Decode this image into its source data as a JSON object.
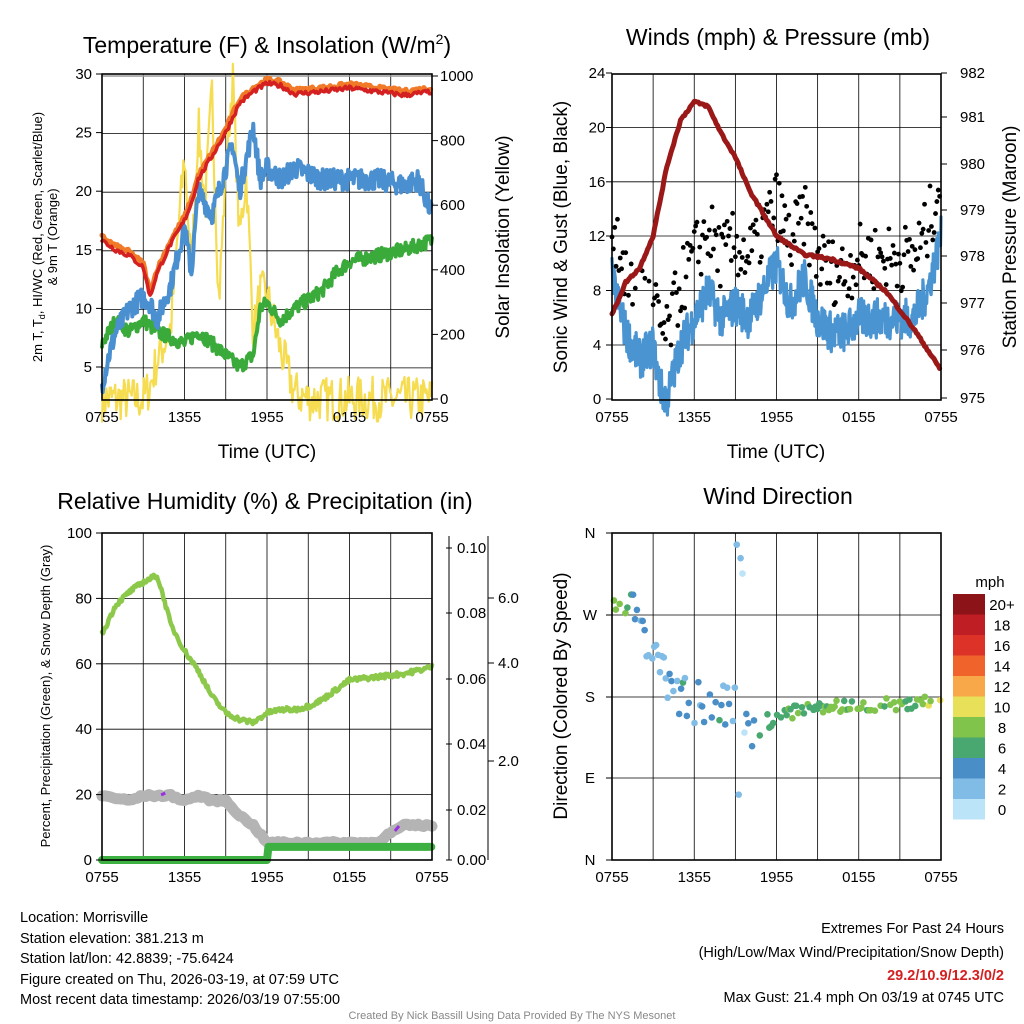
{
  "footer": {
    "location": "Location: Morrisville",
    "elevation": "Station elevation: 381.213 m",
    "latlon": "Station lat/lon: 42.8839; -75.6424",
    "created": "Figure created on Thu, 2026-03-19, at 07:59 UTC",
    "recent": "Most recent data timestamp: 2026/03/19 07:55:00",
    "extremes_title": "Extremes For Past 24 Hours",
    "extremes_legend": "(High/Low/Max Wind/Precipitation/Snow Depth)",
    "extremes_values": "29.2/10.9/12.3/0/2",
    "max_gust": "Max Gust: 21.4 mph On 03/19 at 0745 UTC",
    "credit": "Created By Nick Bassill Using Data Provided By The NYS Mesonet"
  },
  "colors": {
    "temp": "#d42020",
    "temp9m": "#f07a28",
    "dew": "#4a8fd0",
    "hiwc": "#3aaa3a",
    "solar": "#f5dc50",
    "wind": "#4a94d2",
    "gust": "#000000",
    "pressure": "#9a1818",
    "rh": "#8cc84a",
    "precip": "#3cb040",
    "snow": "#b4b4b4",
    "snowmark": "#9a30e0",
    "extreme": "#d42020"
  },
  "chart_data": [
    {
      "type": "line",
      "title": "Temperature (F) & Insolation (W/m",
      "title_sup": "2",
      "title_end": ")",
      "xlabel": "Time (UTC)",
      "ylabel_line1": "2m T, T",
      "ylabel_sub": "d",
      "ylabel_line1b": ", HI/WC (Red, Green, Scarlet/Blue)",
      "ylabel_line2": "& 9m T (Orange)",
      "y2label": "Solar Insolation (Yellow)",
      "xticks": [
        "0755",
        "1355",
        "1955",
        "0155",
        "0755"
      ],
      "yticks": [
        "30",
        "25",
        "20",
        "15",
        "10",
        "5"
      ],
      "y2ticks": [
        "1000",
        "800",
        "600",
        "400",
        "200",
        "0"
      ],
      "ylim": [
        2.2,
        30
      ],
      "y2lim": [
        0,
        1000
      ],
      "xlim_hours": [
        0,
        24
      ],
      "grid": true,
      "series": [
        {
          "name": "2m T",
          "color_key": "temp",
          "x": [
            0,
            1,
            2,
            3,
            3.5,
            4,
            5,
            6,
            6.5,
            7,
            8,
            9,
            10,
            11,
            12,
            13,
            14,
            16,
            18,
            20,
            22,
            24
          ],
          "y": [
            15.8,
            15,
            14.5,
            13.5,
            11,
            13,
            15.5,
            17.5,
            19,
            21,
            23,
            25,
            27.5,
            28.5,
            29.2,
            29,
            28.3,
            28.5,
            28.8,
            28.5,
            28.2,
            28.5
          ]
        },
        {
          "name": "Td",
          "color_key": "dew",
          "x": [
            0,
            0.5,
            1,
            2,
            3,
            3.5,
            4,
            5,
            6,
            6.5,
            7,
            8,
            9,
            9.5,
            10,
            11,
            11.5,
            12,
            13,
            14,
            16,
            18,
            20,
            22,
            23,
            24
          ],
          "y": [
            3.5,
            6,
            8,
            10,
            11,
            10.5,
            9,
            12,
            17,
            13,
            20,
            18,
            22,
            24,
            20,
            25.5,
            21,
            22,
            21,
            22,
            21,
            21,
            21,
            20.5,
            21,
            18
          ]
        },
        {
          "name": "HI/WC",
          "color_key": "hiwc",
          "x": [
            0,
            1,
            2,
            3,
            4,
            5,
            6,
            7,
            8,
            9,
            10,
            11,
            11.5,
            12,
            13,
            14,
            16,
            17,
            18,
            20,
            22,
            24
          ],
          "y": [
            7,
            9,
            8,
            9,
            8,
            7.5,
            7,
            8,
            7,
            6,
            5,
            6,
            10,
            10.5,
            9,
            10,
            11.5,
            13,
            14,
            14.5,
            15,
            15.8
          ]
        },
        {
          "name": "Solar",
          "color_key": "solar",
          "axis": "y2",
          "x": [
            0,
            3,
            3.5,
            4,
            5,
            5.5,
            6,
            6.5,
            7,
            7.5,
            8,
            8.5,
            9,
            9.5,
            10,
            10.5,
            11,
            11.5,
            12,
            13,
            14,
            15,
            24
          ],
          "y": [
            0,
            0,
            40,
            120,
            220,
            500,
            750,
            400,
            850,
            600,
            950,
            300,
            700,
            1000,
            500,
            700,
            200,
            330,
            320,
            150,
            20,
            0,
            0
          ]
        }
      ]
    },
    {
      "type": "line",
      "title": "Winds (mph) & Pressure (mb)",
      "xlabel": "Time (UTC)",
      "ylabel": "Sonic Wind & Gust (Blue, Black)",
      "y2label": "Station Pressure (Maroon)",
      "xticks": [
        "0755",
        "1355",
        "1955",
        "0155",
        "0755"
      ],
      "yticks": [
        "24",
        "20",
        "16",
        "12",
        "8",
        "4",
        "0"
      ],
      "y2ticks": [
        "982",
        "981",
        "980",
        "979",
        "978",
        "977",
        "976",
        "975"
      ],
      "ylim": [
        0,
        24
      ],
      "y2lim": [
        975,
        982
      ],
      "grid": true,
      "series": [
        {
          "name": "Sonic Wind",
          "color_key": "wind",
          "x": [
            0,
            1,
            2,
            3,
            3.5,
            4,
            5,
            6,
            7,
            8,
            9,
            10,
            11,
            12,
            13,
            14,
            15,
            16,
            17,
            18,
            20,
            22,
            23,
            24
          ],
          "y": [
            9,
            5,
            3,
            4,
            1,
            0,
            4,
            6,
            8,
            6,
            7,
            6,
            8,
            10,
            7,
            9,
            6,
            5,
            5,
            6,
            6,
            6,
            8,
            12
          ]
        },
        {
          "name": "Gust",
          "color_key": "gust",
          "type": "scatter",
          "offset_from_wind": 3.5
        },
        {
          "name": "Pressure",
          "color_key": "pressure",
          "axis": "y2",
          "x": [
            0,
            1,
            2,
            3,
            4,
            5,
            6,
            7,
            8,
            9,
            10,
            11,
            12,
            14,
            16,
            18,
            20,
            22,
            24
          ],
          "y": [
            976.8,
            977.5,
            977.8,
            978.5,
            980,
            981,
            981.4,
            981.3,
            980.7,
            980.2,
            979.5,
            979,
            978.5,
            978.1,
            978,
            977.8,
            977.3,
            976.5,
            975.6
          ]
        }
      ]
    },
    {
      "type": "line",
      "title": "Relative Humidity (%) & Precipitation (in)",
      "ylabel": "Percent, Precipitation (Green), & Snow Depth (Gray)",
      "xticks": [
        "0755",
        "1355",
        "1955",
        "0155",
        "0755"
      ],
      "yticks": [
        "100",
        "80",
        "60",
        "40",
        "20",
        "0"
      ],
      "y2ticks": [
        "0.10",
        "0.08",
        "0.06",
        "0.04",
        "0.02",
        "0.00"
      ],
      "y3ticks": [
        "6.0",
        "4.0",
        "2.0"
      ],
      "ylim": [
        0,
        100
      ],
      "y2lim": [
        0,
        0.1
      ],
      "grid": true,
      "series": [
        {
          "name": "RH",
          "color_key": "rh",
          "x": [
            0,
            1,
            2,
            3,
            4,
            4.5,
            5,
            6,
            7,
            8,
            9,
            10,
            11,
            12,
            13,
            14,
            15,
            16,
            17,
            18,
            20,
            22,
            24
          ],
          "y": [
            69,
            78,
            82,
            85,
            87,
            80,
            72,
            64,
            58,
            50,
            45,
            43,
            42,
            45,
            46,
            46,
            47,
            49,
            52,
            55,
            56,
            57,
            59
          ]
        },
        {
          "name": "Snow Depth",
          "color_key": "snow",
          "x": [
            0,
            2,
            3,
            4,
            5,
            6,
            7,
            8,
            9,
            10,
            11,
            12,
            13,
            17,
            20,
            21,
            22,
            24
          ],
          "y": [
            1.3,
            1.2,
            1.3,
            1.3,
            1.3,
            1.2,
            1.3,
            1.2,
            1.2,
            0.9,
            0.7,
            0.35,
            0.35,
            0.35,
            0.35,
            0.55,
            0.7,
            0.7
          ]
        },
        {
          "name": "Precip",
          "color_key": "precip",
          "x": [
            0,
            12,
            12.1,
            24
          ],
          "y": [
            0,
            0,
            0.004,
            0.004
          ]
        }
      ]
    },
    {
      "type": "scatter",
      "title": "Wind Direction",
      "ylabel": "Direction (Colored By Speed)",
      "xticks": [
        "0755",
        "1355",
        "1955",
        "0155",
        "0755"
      ],
      "yticks": [
        "N",
        "W",
        "S",
        "E",
        "N"
      ],
      "ylim": [
        0,
        360
      ],
      "colorbar_title": "mph",
      "colorbar_labels": [
        "20+",
        "18",
        "16",
        "14",
        "12",
        "10",
        "8",
        "6",
        "4",
        "2",
        "0"
      ],
      "colorbar_colors": [
        "#8c1418",
        "#be1e24",
        "#dc3228",
        "#f0642c",
        "#f8a848",
        "#e8e058",
        "#80c44c",
        "#48a870",
        "#4a8ec8",
        "#80bce6",
        "#bce4f8"
      ],
      "trend": {
        "x": [
          0,
          1,
          2,
          3,
          4,
          5,
          6,
          8,
          9,
          10,
          11,
          12,
          14,
          16,
          18,
          20,
          22,
          24
        ],
        "dir": [
          300,
          295,
          270,
          230,
          200,
          180,
          175,
          170,
          165,
          150,
          145,
          160,
          165,
          168,
          170,
          172,
          172,
          180
        ],
        "speed": [
          8,
          7,
          3,
          2,
          3,
          4,
          3,
          4,
          3,
          4,
          6,
          7,
          7,
          7,
          7,
          7,
          7,
          11
        ]
      }
    }
  ]
}
